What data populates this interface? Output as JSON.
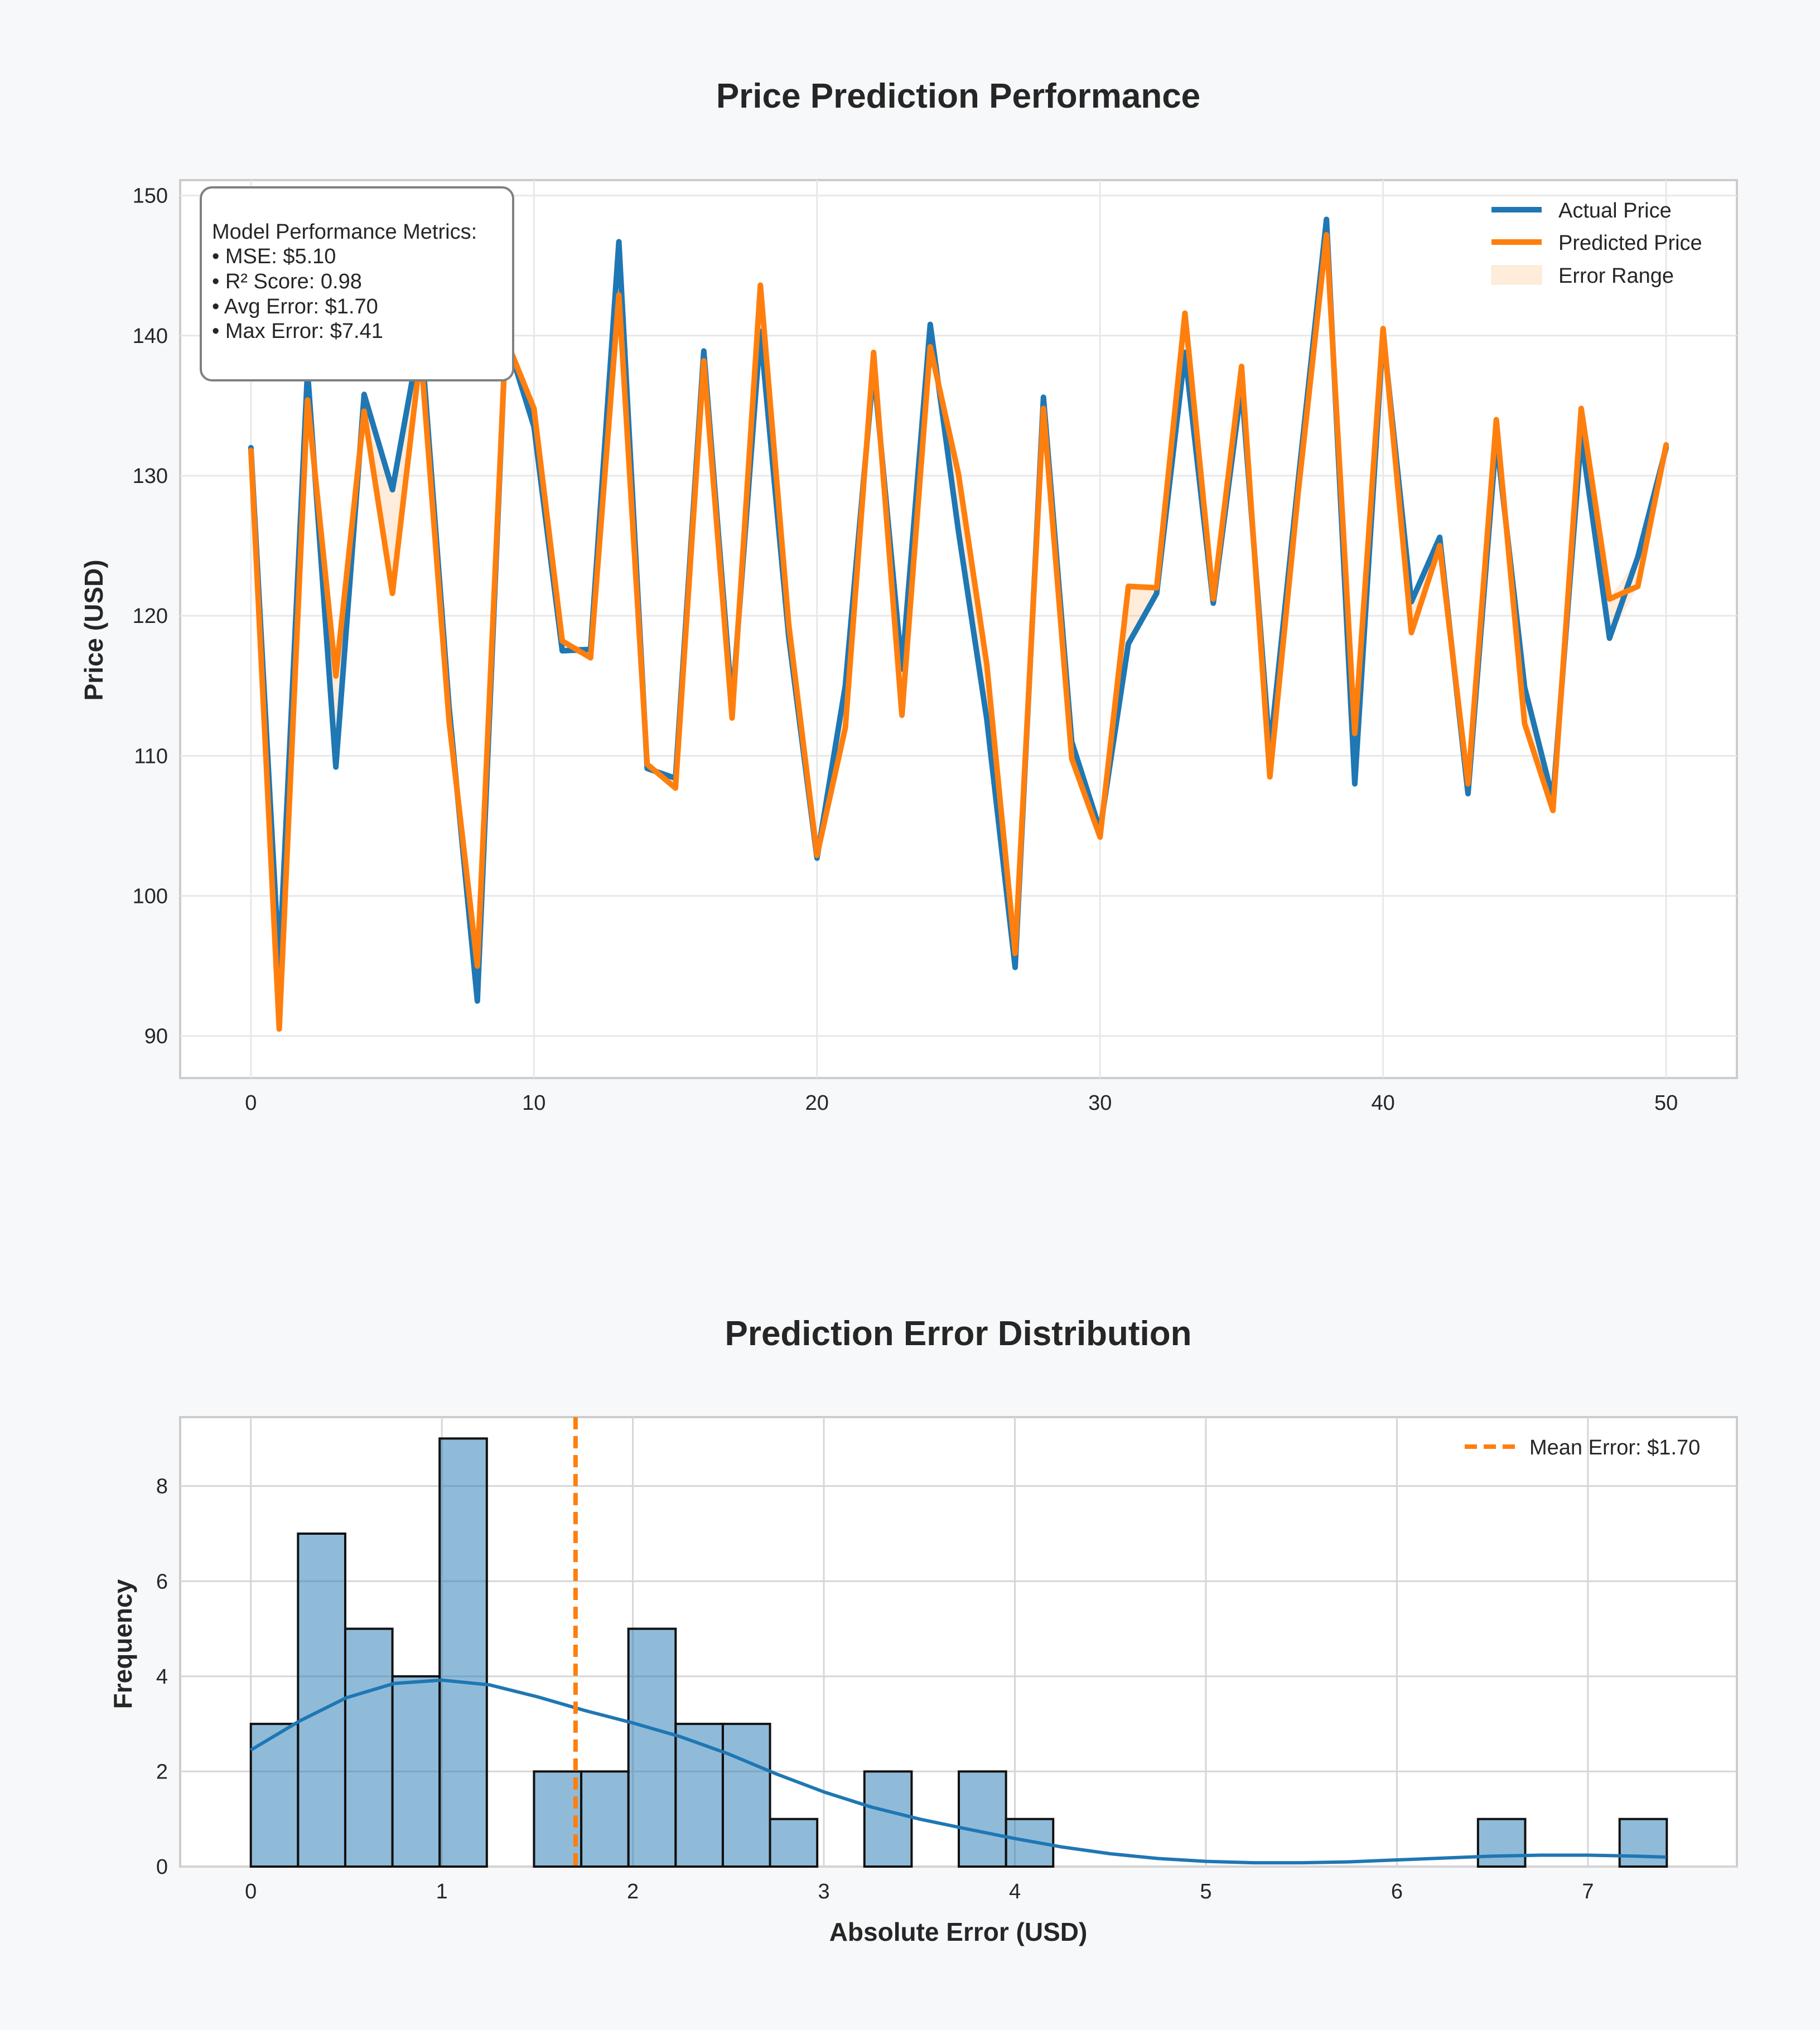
{
  "chart_data": [
    {
      "type": "line",
      "title": "Price Prediction Performance",
      "xlabel": "",
      "ylabel": "Price (USD)",
      "xlim": [
        -2.5,
        52.5
      ],
      "ylim": [
        87,
        151.1
      ],
      "xticks": [
        0,
        10,
        20,
        30,
        40,
        50
      ],
      "yticks": [
        90,
        100,
        110,
        120,
        130,
        140,
        150
      ],
      "grid": true,
      "legend_position": "top-right",
      "x": [
        0,
        1,
        2,
        3,
        4,
        5,
        6,
        7,
        8,
        9,
        10,
        11,
        12,
        13,
        14,
        15,
        16,
        17,
        18,
        19,
        20,
        21,
        22,
        23,
        24,
        25,
        26,
        27,
        28,
        29,
        30,
        31,
        32,
        33,
        34,
        35,
        36,
        37,
        38,
        39,
        40,
        41,
        42,
        43,
        44,
        45,
        46,
        47,
        48,
        49,
        50
      ],
      "series": [
        {
          "name": "Actual Price",
          "color": "#1f77b4",
          "values": [
            132.0,
            94.9,
            137.5,
            109.2,
            135.8,
            129.0,
            140.2,
            113.5,
            92.5,
            140.0,
            133.5,
            117.5,
            117.6,
            146.7,
            109.1,
            108.4,
            138.9,
            113.6,
            140.3,
            118.5,
            102.7,
            115.0,
            137.7,
            116.2,
            140.8,
            126.0,
            112.6,
            94.9,
            135.6,
            111.0,
            104.7,
            118.0,
            121.6,
            138.8,
            120.9,
            136.4,
            110.3,
            129.6,
            148.3,
            108.0,
            140.2,
            121.0,
            125.6,
            107.3,
            132.7,
            114.9,
            106.9,
            132.8,
            118.4,
            124.2,
            132.0
          ]
        },
        {
          "name": "Predicted Price",
          "color": "#ff7f0e",
          "values": [
            131.8,
            90.5,
            135.4,
            115.7,
            134.6,
            121.6,
            138.8,
            112.5,
            95.0,
            139.8,
            134.8,
            118.2,
            117.0,
            142.9,
            109.4,
            107.7,
            138.2,
            112.7,
            143.6,
            119.4,
            102.9,
            112.0,
            138.8,
            112.9,
            139.2,
            130.1,
            116.5,
            95.9,
            134.8,
            109.8,
            104.2,
            122.1,
            122.0,
            141.6,
            121.2,
            137.8,
            108.5,
            128.8,
            147.2,
            111.6,
            140.5,
            118.8,
            125.0,
            108.0,
            134.0,
            112.3,
            106.1,
            134.8,
            121.2,
            122.1,
            132.2
          ]
        }
      ],
      "error_band": {
        "name": "Error Range",
        "color": "#ff7f0e",
        "opacity": 0.15
      },
      "annotation": {
        "heading": "Model Performance Metrics:",
        "lines": [
          "• MSE: $5.10",
          "• R² Score: 0.98",
          "• Avg Error: $1.70",
          "• Max Error: $7.41"
        ]
      }
    },
    {
      "type": "bar",
      "subtype": "histogram",
      "title": "Prediction Error Distribution",
      "xlabel": "Absolute Error (USD)",
      "ylabel": "Frequency",
      "xlim": [
        -0.37,
        7.78
      ],
      "ylim": [
        0,
        9.45
      ],
      "xticks": [
        0,
        1,
        2,
        3,
        4,
        5,
        6,
        7
      ],
      "yticks": [
        0,
        2,
        4,
        6,
        8
      ],
      "grid": true,
      "legend_position": "top-right",
      "bin_start": 0,
      "bin_width": 0.2471,
      "bar_color": "#1f77b4",
      "bar_opacity": 0.5,
      "values": [
        3,
        7,
        5,
        4,
        9,
        0,
        2,
        2,
        5,
        3,
        3,
        1,
        0,
        2,
        0,
        2,
        1,
        0,
        0,
        0,
        0,
        0,
        0,
        0,
        0,
        0,
        1,
        0,
        0,
        1
      ],
      "kde": {
        "color": "#1f77b4",
        "x": [
          0,
          0.25,
          0.5,
          0.75,
          1.0,
          1.25,
          1.5,
          1.75,
          2.0,
          2.25,
          2.5,
          2.75,
          3.0,
          3.25,
          3.5,
          3.75,
          4.0,
          4.25,
          4.5,
          4.75,
          5.0,
          5.25,
          5.5,
          5.75,
          6.0,
          6.25,
          6.5,
          6.75,
          7.0,
          7.25,
          7.41
        ],
        "y": [
          2.45,
          3.05,
          3.55,
          3.85,
          3.92,
          3.82,
          3.57,
          3.28,
          3.02,
          2.73,
          2.37,
          1.95,
          1.57,
          1.25,
          1.0,
          0.79,
          0.59,
          0.41,
          0.27,
          0.17,
          0.11,
          0.08,
          0.08,
          0.1,
          0.14,
          0.18,
          0.22,
          0.24,
          0.24,
          0.22,
          0.2
        ]
      },
      "mean_line": {
        "value": 1.7,
        "label": "Mean Error: $1.70",
        "color": "#ff7f0e"
      }
    }
  ]
}
